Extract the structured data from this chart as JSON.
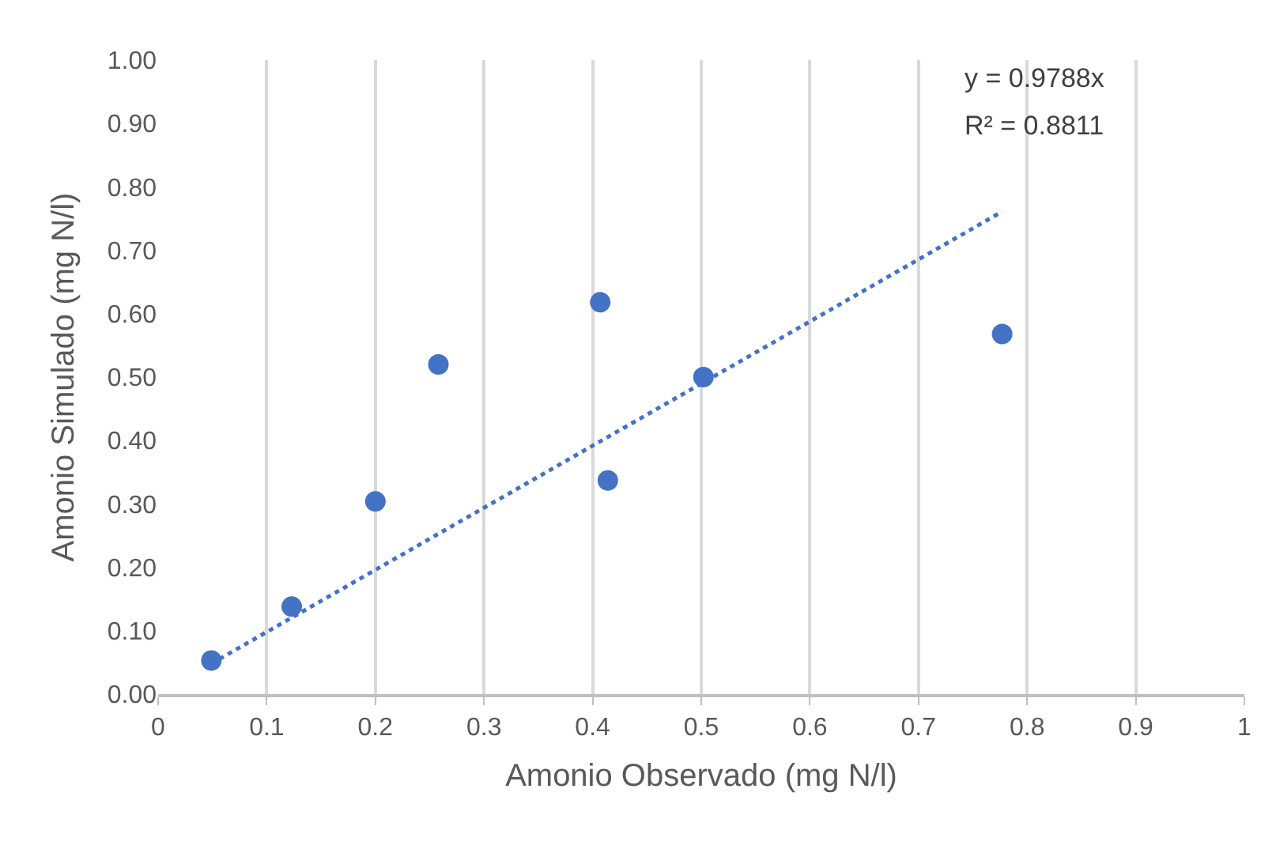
{
  "chart_data": {
    "type": "scatter",
    "xlabel": "Amonio Observado (mg N/l)",
    "ylabel": "Amonio Simulado (mg N/l)",
    "annotations": [
      "y = 0.9788x",
      "R² = 0.8811"
    ],
    "x": [
      0.049,
      0.123,
      0.2,
      0.258,
      0.407,
      0.414,
      0.502,
      0.777
    ],
    "series": [
      {
        "color": "#4472c4",
        "marker": "circle",
        "values": [
          0.053,
          0.138,
          0.304,
          0.52,
          0.618,
          0.337,
          0.5,
          0.568
        ]
      },
      {
        "type": "line",
        "color": "#4472c4",
        "line_style": "dotted",
        "marker": "none",
        "x": [
          0.049,
          0.777
        ],
        "values": [
          0.048,
          0.761
        ]
      }
    ],
    "xlim": [
      0,
      1
    ],
    "xticks": [
      0,
      0.1,
      0.2,
      0.3,
      0.4,
      0.5,
      0.6,
      0.7,
      0.8,
      0.9,
      1
    ],
    "ylim": [
      0,
      1
    ],
    "yticks": [
      {
        "value": 0,
        "label": "0.00"
      },
      {
        "value": 0.1,
        "label": "0.10"
      },
      {
        "value": 0.2,
        "label": "0.20"
      },
      {
        "value": 0.3,
        "label": "0.30"
      },
      {
        "value": 0.4,
        "label": "0.40"
      },
      {
        "value": 0.5,
        "label": "0.50"
      },
      {
        "value": 0.6,
        "label": "0.60"
      },
      {
        "value": 0.7,
        "label": "0.70"
      },
      {
        "value": 0.8,
        "label": "0.80"
      },
      {
        "value": 0.9,
        "label": "0.90"
      },
      {
        "value": 1,
        "label": "1.00"
      }
    ],
    "grid": "x"
  }
}
